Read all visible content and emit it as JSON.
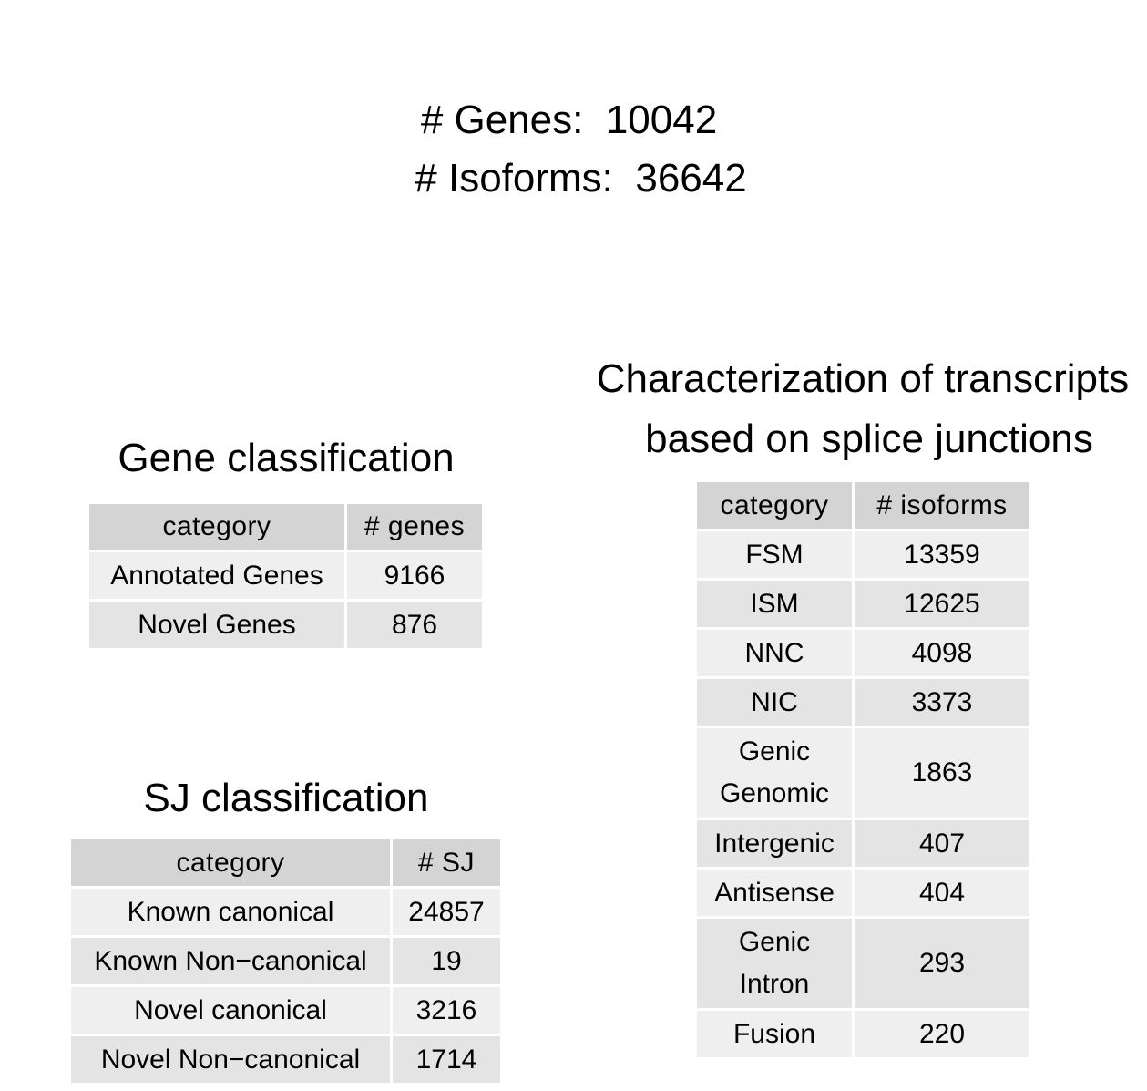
{
  "summary": {
    "genes": "# Genes:  10042",
    "isoforms": "# Isoforms:  36642"
  },
  "gene_classification": {
    "title": "Gene classification",
    "headers": [
      "category",
      "# genes"
    ],
    "rows": [
      [
        "Annotated Genes",
        "9166"
      ],
      [
        "Novel Genes",
        "876"
      ]
    ]
  },
  "sj_classification": {
    "title": "SJ classification",
    "headers": [
      "category",
      "# SJ"
    ],
    "rows": [
      [
        "Known canonical",
        "24857"
      ],
      [
        "Known Non−canonical",
        "19"
      ],
      [
        "Novel canonical",
        "3216"
      ],
      [
        "Novel Non−canonical",
        "1714"
      ]
    ]
  },
  "transcript_characterization": {
    "title_line1": "Characterization of transcripts",
    "title_line2": "based on splice junctions",
    "headers": [
      "category",
      "# isoforms"
    ],
    "rows": [
      [
        "FSM",
        "13359"
      ],
      [
        "ISM",
        "12625"
      ],
      [
        "NNC",
        "4098"
      ],
      [
        "NIC",
        "3373"
      ],
      [
        "Genic\nGenomic",
        "1863"
      ],
      [
        "Intergenic",
        "407"
      ],
      [
        "Antisense",
        "404"
      ],
      [
        "Genic\nIntron",
        "293"
      ],
      [
        "Fusion",
        "220"
      ]
    ]
  }
}
